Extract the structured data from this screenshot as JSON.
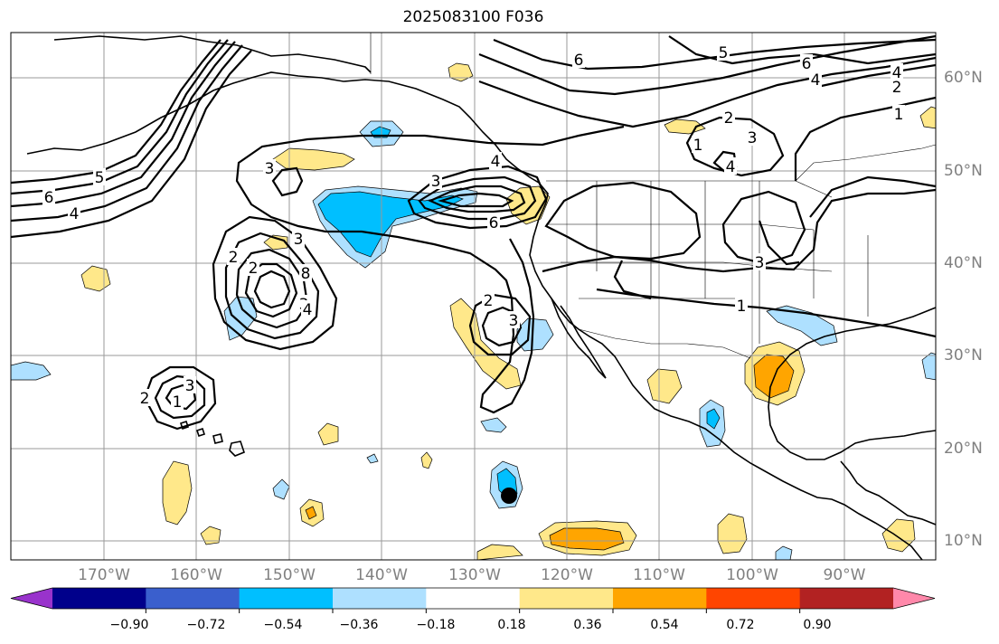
{
  "title": "2025083100 F036",
  "lat_labels": [
    "60°N",
    "50°N",
    "40°N",
    "30°N",
    "20°N",
    "10°N"
  ],
  "lon_labels": [
    "170°W",
    "160°W",
    "150°W",
    "140°W",
    "130°W",
    "120°W",
    "110°W",
    "100°W",
    "90°W"
  ],
  "colorbar": {
    "colors": [
      "#9933cc",
      "#00008b",
      "#3a5fcd",
      "#00bfff",
      "#aee0ff",
      "#ffffff",
      "#ffe88a",
      "#ffa500",
      "#ff4500",
      "#b22222",
      "#ff88aa"
    ],
    "tick_labels": [
      "−0.90",
      "−0.72",
      "−0.54",
      "−0.36",
      "−0.18",
      "0.18",
      "0.36",
      "0.54",
      "0.72",
      "0.90"
    ]
  },
  "contour_labels": [
    "5",
    "6",
    "4",
    "2",
    "6",
    "4",
    "2",
    "3",
    "3",
    "2",
    "3",
    "6",
    "2",
    "3",
    "8",
    "4",
    "2",
    "3",
    "5",
    "6",
    "4",
    "3",
    "1",
    "3",
    "4",
    "3",
    "1",
    "1",
    "2",
    "4",
    "1"
  ],
  "storm_marker": "tropical-cyclone-position"
}
